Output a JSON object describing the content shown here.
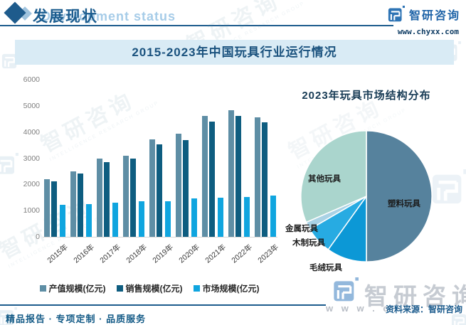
{
  "header": {
    "title": "发展现状",
    "ghost_title": "Development status",
    "brand_name": "智研咨询",
    "brand_url": "www.chyxx.com"
  },
  "banner": {
    "title": "2015-2023年中国玩具行业运行情况"
  },
  "chart_data": [
    {
      "type": "bar",
      "title": "2015-2023年中国玩具行业运行情况",
      "categories": [
        "2015年",
        "2016年",
        "2017年",
        "2018年",
        "2019年",
        "2020年",
        "2021年",
        "2022年",
        "2023年"
      ],
      "series": [
        {
          "name": "产值规模(亿元)",
          "color": "#5e8ea5",
          "values": [
            2190,
            2490,
            2980,
            3100,
            3720,
            3930,
            4610,
            4830,
            4570
          ]
        },
        {
          "name": "销售规模(亿元)",
          "color": "#0e5d80",
          "values": [
            2120,
            2420,
            2860,
            2980,
            3520,
            3690,
            4390,
            4610,
            4360
          ]
        },
        {
          "name": "市场规模(亿元)",
          "color": "#0fa5df",
          "values": [
            1210,
            1250,
            1300,
            1350,
            1370,
            1470,
            1500,
            1530,
            1580
          ]
        }
      ],
      "ylabel": "",
      "ylim": [
        0,
        6000
      ],
      "yticks": [
        0,
        1000,
        2000,
        3000,
        4000,
        5000,
        6000
      ],
      "grid": false,
      "legend_position": "bottom"
    },
    {
      "type": "pie",
      "title": "2023年玩具市场结构分布",
      "start_angle_deg": 0,
      "direction": "clockwise",
      "slices": [
        {
          "label": "塑料玩具",
          "fraction": 0.5,
          "color": "#56829d"
        },
        {
          "label": "毛绒玩具",
          "fraction": 0.099,
          "color": "#0c98d6"
        },
        {
          "label": "木制玩具",
          "fraction": 0.067,
          "color": "#27abe2"
        },
        {
          "label": "金属玩具",
          "fraction": 0.019,
          "color": "#a9d2e5"
        },
        {
          "label": "其他玩具",
          "fraction": 0.315,
          "color": "#aad5cd"
        }
      ]
    }
  ],
  "footer": {
    "source": "资料来源：智研咨询",
    "tagline": "精品报告 · 专项定制 · 品质服务"
  },
  "watermark": {
    "brand": "智研咨询",
    "subtitle": "INTELLIGENCE RESEARCH GROUP",
    "url_fragment": "w w w . c"
  }
}
